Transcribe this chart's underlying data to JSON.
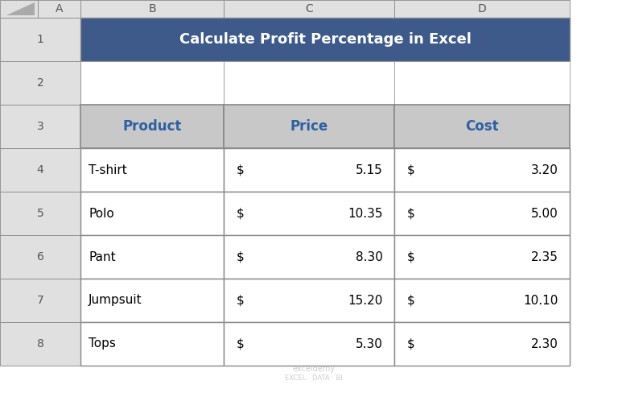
{
  "title": "Calculate Profit Percentage in Excel",
  "title_bg_color": "#3D5A8A",
  "title_text_color": "#FFFFFF",
  "header_bg_color": "#C8C8C8",
  "header_text_color": "#2E5FA3",
  "cell_bg_color": "#FFFFFF",
  "border_color": "#888888",
  "col_headers": [
    "Product",
    "Price",
    "Cost"
  ],
  "products": [
    "T-shirt",
    "Polo",
    "Pant",
    "Jumpsuit",
    "Tops"
  ],
  "prices": [
    5.15,
    10.35,
    8.3,
    15.2,
    5.3
  ],
  "costs": [
    3.2,
    5.0,
    2.35,
    10.1,
    2.3
  ],
  "excel_col_labels": [
    "A",
    "B",
    "C",
    "D"
  ],
  "excel_row_labels": [
    "1",
    "2",
    "3",
    "4",
    "5",
    "6",
    "7",
    "8"
  ],
  "excel_header_bg": "#E0E0E0",
  "excel_header_text": "#555555",
  "fig_bg_color": "#FFFFFF",
  "watermark_line1": "exceldemy",
  "watermark_line2": "EXCEL · DATA · BI",
  "watermark_color": "#CCCCCC",
  "corner_triangle_color": "#AAAAAA",
  "row_number_color": "#555555"
}
